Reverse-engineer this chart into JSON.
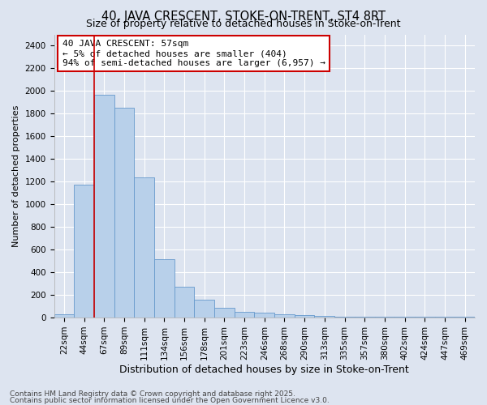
{
  "title": "40, JAVA CRESCENT, STOKE-ON-TRENT, ST4 8RT",
  "subtitle": "Size of property relative to detached houses in Stoke-on-Trent",
  "xlabel": "Distribution of detached houses by size in Stoke-on-Trent",
  "ylabel": "Number of detached properties",
  "categories": [
    "22sqm",
    "44sqm",
    "67sqm",
    "89sqm",
    "111sqm",
    "134sqm",
    "156sqm",
    "178sqm",
    "201sqm",
    "223sqm",
    "246sqm",
    "268sqm",
    "290sqm",
    "313sqm",
    "335sqm",
    "357sqm",
    "380sqm",
    "402sqm",
    "424sqm",
    "447sqm",
    "469sqm"
  ],
  "values": [
    30,
    1175,
    1970,
    1855,
    1240,
    515,
    275,
    155,
    90,
    50,
    45,
    30,
    20,
    15,
    5,
    5,
    5,
    5,
    5,
    5,
    5
  ],
  "bar_color": "#b8d0ea",
  "bar_edge_color": "#6699cc",
  "background_color": "#dde4f0",
  "grid_color": "#ffffff",
  "annotation_text": "40 JAVA CRESCENT: 57sqm\n← 5% of detached houses are smaller (404)\n94% of semi-detached houses are larger (6,957) →",
  "vline_x": 1.5,
  "vline_color": "#cc0000",
  "annotation_box_facecolor": "#ffffff",
  "annotation_box_edgecolor": "#cc0000",
  "footer1": "Contains HM Land Registry data © Crown copyright and database right 2025.",
  "footer2": "Contains public sector information licensed under the Open Government Licence v3.0.",
  "ylim": [
    0,
    2500
  ],
  "yticks": [
    0,
    200,
    400,
    600,
    800,
    1000,
    1200,
    1400,
    1600,
    1800,
    2000,
    2200,
    2400
  ],
  "title_fontsize": 10.5,
  "subtitle_fontsize": 9,
  "ylabel_fontsize": 8,
  "xlabel_fontsize": 9,
  "tick_fontsize": 7.5,
  "footer_fontsize": 6.5
}
